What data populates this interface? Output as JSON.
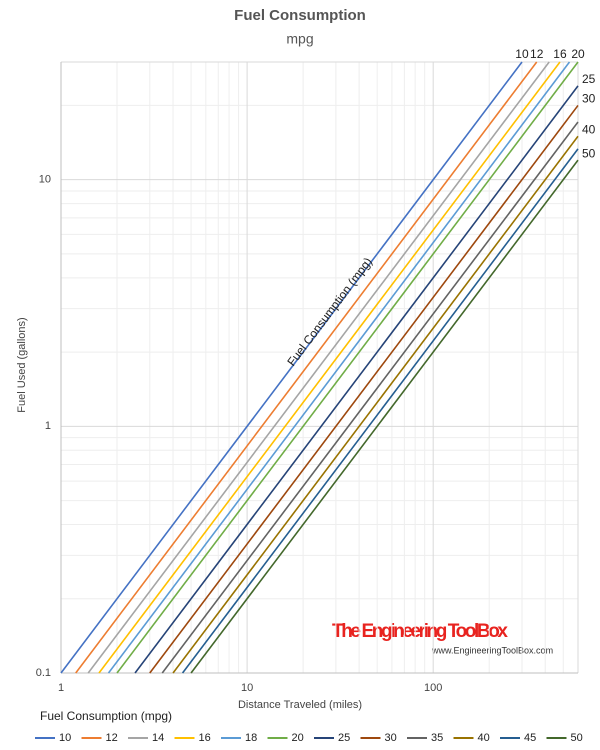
{
  "chart_data": {
    "type": "line",
    "title": "Fuel Consumption",
    "subtitle": "mpg",
    "x_label": "Distance Traveled (miles)",
    "y_label": "Fuel Used (gallons)",
    "annotation": "Fuel Consumption (mpg)",
    "legend_title": "Fuel Consumption (mpg)",
    "watermark": "The Engineering ToolBox",
    "watermark_url": "www.EngineeringToolBox.com",
    "log_x": true,
    "log_y": true,
    "grid": true,
    "minor_grid": true,
    "legend": "bottom",
    "xlim": [
      1,
      600
    ],
    "ylim": [
      0.1,
      30
    ],
    "xticks": [
      1,
      10,
      100
    ],
    "yticks": [
      0.1,
      1,
      10
    ],
    "series": [
      {
        "name": "10",
        "color": "#4472c4",
        "x": [
          1,
          300
        ],
        "values": [
          0.1,
          30
        ],
        "end_label": true
      },
      {
        "name": "12",
        "color": "#ed7d31",
        "x": [
          1.2,
          360
        ],
        "values": [
          0.1,
          30
        ],
        "end_label": true
      },
      {
        "name": "14",
        "color": "#a5a5a5",
        "x": [
          1.4,
          420
        ],
        "values": [
          0.1,
          30
        ],
        "end_label": false
      },
      {
        "name": "16",
        "color": "#ffc000",
        "x": [
          1.6,
          480
        ],
        "values": [
          0.1,
          30
        ],
        "end_label": true
      },
      {
        "name": "18",
        "color": "#5b9bd5",
        "x": [
          1.8,
          540
        ],
        "values": [
          0.1,
          30
        ],
        "end_label": false
      },
      {
        "name": "20",
        "color": "#70ad47",
        "x": [
          2,
          600
        ],
        "values": [
          0.1,
          30
        ],
        "end_label": true
      },
      {
        "name": "25",
        "color": "#264478",
        "x": [
          2.5,
          600
        ],
        "values": [
          0.1,
          24
        ],
        "end_label": true
      },
      {
        "name": "30",
        "color": "#9e480e",
        "x": [
          3,
          600
        ],
        "values": [
          0.1,
          20
        ],
        "end_label": true
      },
      {
        "name": "35",
        "color": "#636363",
        "x": [
          3.5,
          600
        ],
        "values": [
          0.1,
          17.14
        ],
        "end_label": false
      },
      {
        "name": "40",
        "color": "#997300",
        "x": [
          4,
          600
        ],
        "values": [
          0.1,
          15
        ],
        "end_label": true
      },
      {
        "name": "45",
        "color": "#255e91",
        "x": [
          4.5,
          600
        ],
        "values": [
          0.1,
          13.33
        ],
        "end_label": false
      },
      {
        "name": "50",
        "color": "#43682b",
        "x": [
          5,
          600
        ],
        "values": [
          0.1,
          12
        ],
        "end_label": true
      }
    ]
  }
}
